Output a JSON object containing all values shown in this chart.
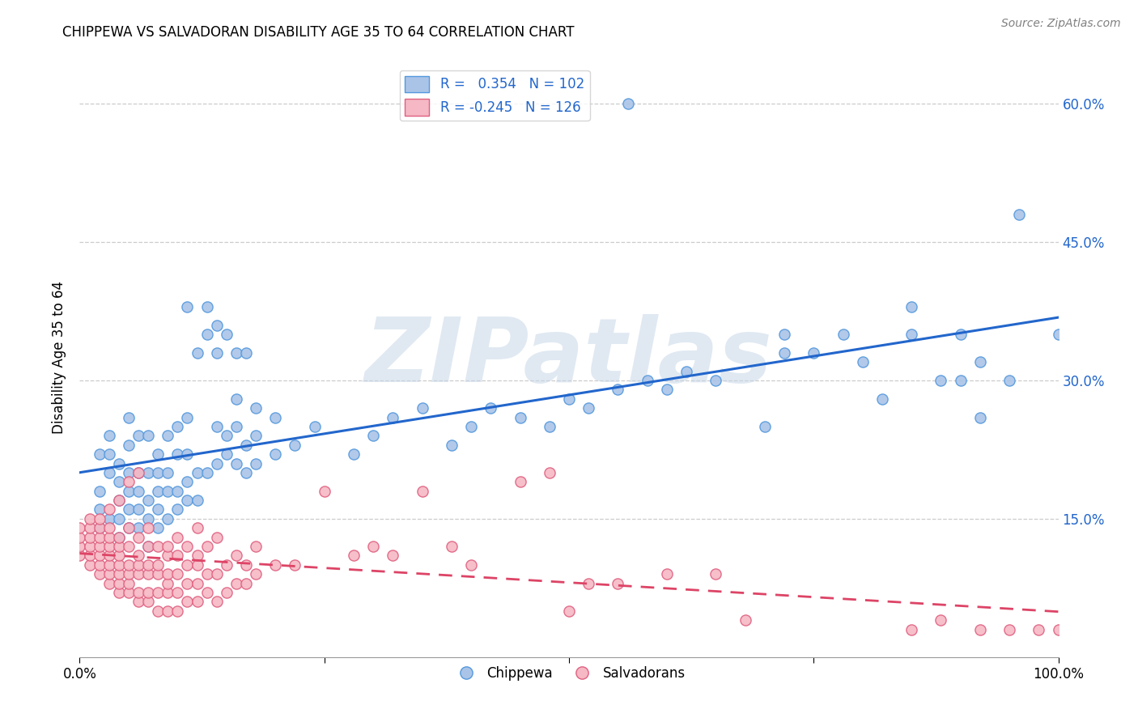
{
  "title": "CHIPPEWA VS SALVADORAN DISABILITY AGE 35 TO 64 CORRELATION CHART",
  "source": "Source: ZipAtlas.com",
  "ylabel": "Disability Age 35 to 64",
  "xlabel": "",
  "background_color": "#ffffff",
  "grid_color": "#cccccc",
  "chippewa_color": "#aac4e8",
  "chippewa_edge_color": "#5599dd",
  "salvadoran_color": "#f5b8c4",
  "salvadoran_edge_color": "#e06080",
  "chippewa_line_color": "#2266cc",
  "salvadoran_line_color": "#dd4466",
  "R_chippewa": 0.354,
  "N_chippewa": 102,
  "R_salvadoran": -0.245,
  "N_salvadoran": 126,
  "xmin": 0.0,
  "xmax": 1.0,
  "ymin": 0.0,
  "ymax": 0.65,
  "ytick_vals": [
    0.15,
    0.3,
    0.45,
    0.6
  ],
  "ytick_labels": [
    "15.0%",
    "30.0%",
    "45.0%",
    "60.0%"
  ],
  "xtick_vals": [
    0.0,
    0.25,
    0.5,
    0.75,
    1.0
  ],
  "xtick_labels": [
    "0.0%",
    "",
    "",
    "",
    "100.0%"
  ],
  "watermark": "ZIPatlas",
  "chippewa_scatter": [
    [
      0.02,
      0.14
    ],
    [
      0.02,
      0.16
    ],
    [
      0.02,
      0.18
    ],
    [
      0.02,
      0.22
    ],
    [
      0.03,
      0.15
    ],
    [
      0.03,
      0.2
    ],
    [
      0.03,
      0.22
    ],
    [
      0.03,
      0.24
    ],
    [
      0.04,
      0.13
    ],
    [
      0.04,
      0.15
    ],
    [
      0.04,
      0.17
    ],
    [
      0.04,
      0.19
    ],
    [
      0.04,
      0.21
    ],
    [
      0.05,
      0.14
    ],
    [
      0.05,
      0.16
    ],
    [
      0.05,
      0.18
    ],
    [
      0.05,
      0.2
    ],
    [
      0.05,
      0.23
    ],
    [
      0.05,
      0.26
    ],
    [
      0.06,
      0.14
    ],
    [
      0.06,
      0.16
    ],
    [
      0.06,
      0.18
    ],
    [
      0.06,
      0.2
    ],
    [
      0.06,
      0.24
    ],
    [
      0.07,
      0.12
    ],
    [
      0.07,
      0.15
    ],
    [
      0.07,
      0.17
    ],
    [
      0.07,
      0.2
    ],
    [
      0.07,
      0.24
    ],
    [
      0.08,
      0.14
    ],
    [
      0.08,
      0.16
    ],
    [
      0.08,
      0.18
    ],
    [
      0.08,
      0.2
    ],
    [
      0.08,
      0.22
    ],
    [
      0.09,
      0.15
    ],
    [
      0.09,
      0.18
    ],
    [
      0.09,
      0.2
    ],
    [
      0.09,
      0.24
    ],
    [
      0.1,
      0.16
    ],
    [
      0.1,
      0.18
    ],
    [
      0.1,
      0.22
    ],
    [
      0.1,
      0.25
    ],
    [
      0.11,
      0.17
    ],
    [
      0.11,
      0.19
    ],
    [
      0.11,
      0.22
    ],
    [
      0.11,
      0.26
    ],
    [
      0.11,
      0.38
    ],
    [
      0.12,
      0.17
    ],
    [
      0.12,
      0.2
    ],
    [
      0.12,
      0.33
    ],
    [
      0.13,
      0.2
    ],
    [
      0.13,
      0.35
    ],
    [
      0.13,
      0.38
    ],
    [
      0.14,
      0.21
    ],
    [
      0.14,
      0.25
    ],
    [
      0.14,
      0.33
    ],
    [
      0.14,
      0.36
    ],
    [
      0.15,
      0.22
    ],
    [
      0.15,
      0.24
    ],
    [
      0.15,
      0.35
    ],
    [
      0.16,
      0.21
    ],
    [
      0.16,
      0.25
    ],
    [
      0.16,
      0.28
    ],
    [
      0.16,
      0.33
    ],
    [
      0.17,
      0.2
    ],
    [
      0.17,
      0.23
    ],
    [
      0.17,
      0.33
    ],
    [
      0.18,
      0.21
    ],
    [
      0.18,
      0.24
    ],
    [
      0.18,
      0.27
    ],
    [
      0.2,
      0.22
    ],
    [
      0.2,
      0.26
    ],
    [
      0.22,
      0.23
    ],
    [
      0.24,
      0.25
    ],
    [
      0.28,
      0.22
    ],
    [
      0.3,
      0.24
    ],
    [
      0.32,
      0.26
    ],
    [
      0.35,
      0.27
    ],
    [
      0.38,
      0.23
    ],
    [
      0.4,
      0.25
    ],
    [
      0.42,
      0.27
    ],
    [
      0.45,
      0.26
    ],
    [
      0.48,
      0.25
    ],
    [
      0.5,
      0.28
    ],
    [
      0.52,
      0.27
    ],
    [
      0.55,
      0.29
    ],
    [
      0.56,
      0.6
    ],
    [
      0.58,
      0.3
    ],
    [
      0.6,
      0.29
    ],
    [
      0.62,
      0.31
    ],
    [
      0.65,
      0.3
    ],
    [
      0.7,
      0.25
    ],
    [
      0.72,
      0.33
    ],
    [
      0.72,
      0.35
    ],
    [
      0.75,
      0.33
    ],
    [
      0.78,
      0.35
    ],
    [
      0.8,
      0.32
    ],
    [
      0.82,
      0.28
    ],
    [
      0.85,
      0.35
    ],
    [
      0.85,
      0.38
    ],
    [
      0.88,
      0.3
    ],
    [
      0.9,
      0.3
    ],
    [
      0.9,
      0.35
    ],
    [
      0.92,
      0.26
    ],
    [
      0.92,
      0.32
    ],
    [
      0.95,
      0.3
    ],
    [
      0.96,
      0.48
    ],
    [
      1.0,
      0.35
    ]
  ],
  "salvadoran_scatter": [
    [
      0.0,
      0.11
    ],
    [
      0.0,
      0.12
    ],
    [
      0.0,
      0.13
    ],
    [
      0.0,
      0.14
    ],
    [
      0.01,
      0.1
    ],
    [
      0.01,
      0.11
    ],
    [
      0.01,
      0.12
    ],
    [
      0.01,
      0.13
    ],
    [
      0.01,
      0.14
    ],
    [
      0.01,
      0.15
    ],
    [
      0.02,
      0.09
    ],
    [
      0.02,
      0.1
    ],
    [
      0.02,
      0.11
    ],
    [
      0.02,
      0.12
    ],
    [
      0.02,
      0.13
    ],
    [
      0.02,
      0.14
    ],
    [
      0.02,
      0.15
    ],
    [
      0.03,
      0.08
    ],
    [
      0.03,
      0.09
    ],
    [
      0.03,
      0.1
    ],
    [
      0.03,
      0.11
    ],
    [
      0.03,
      0.12
    ],
    [
      0.03,
      0.13
    ],
    [
      0.03,
      0.14
    ],
    [
      0.03,
      0.16
    ],
    [
      0.04,
      0.07
    ],
    [
      0.04,
      0.08
    ],
    [
      0.04,
      0.09
    ],
    [
      0.04,
      0.1
    ],
    [
      0.04,
      0.11
    ],
    [
      0.04,
      0.12
    ],
    [
      0.04,
      0.13
    ],
    [
      0.04,
      0.17
    ],
    [
      0.05,
      0.07
    ],
    [
      0.05,
      0.08
    ],
    [
      0.05,
      0.09
    ],
    [
      0.05,
      0.1
    ],
    [
      0.05,
      0.12
    ],
    [
      0.05,
      0.14
    ],
    [
      0.05,
      0.19
    ],
    [
      0.06,
      0.06
    ],
    [
      0.06,
      0.07
    ],
    [
      0.06,
      0.09
    ],
    [
      0.06,
      0.1
    ],
    [
      0.06,
      0.11
    ],
    [
      0.06,
      0.13
    ],
    [
      0.06,
      0.2
    ],
    [
      0.07,
      0.06
    ],
    [
      0.07,
      0.07
    ],
    [
      0.07,
      0.09
    ],
    [
      0.07,
      0.1
    ],
    [
      0.07,
      0.12
    ],
    [
      0.07,
      0.14
    ],
    [
      0.08,
      0.05
    ],
    [
      0.08,
      0.07
    ],
    [
      0.08,
      0.09
    ],
    [
      0.08,
      0.1
    ],
    [
      0.08,
      0.12
    ],
    [
      0.09,
      0.05
    ],
    [
      0.09,
      0.07
    ],
    [
      0.09,
      0.08
    ],
    [
      0.09,
      0.09
    ],
    [
      0.09,
      0.11
    ],
    [
      0.09,
      0.12
    ],
    [
      0.1,
      0.05
    ],
    [
      0.1,
      0.07
    ],
    [
      0.1,
      0.09
    ],
    [
      0.1,
      0.11
    ],
    [
      0.1,
      0.13
    ],
    [
      0.11,
      0.06
    ],
    [
      0.11,
      0.08
    ],
    [
      0.11,
      0.1
    ],
    [
      0.11,
      0.12
    ],
    [
      0.12,
      0.06
    ],
    [
      0.12,
      0.08
    ],
    [
      0.12,
      0.1
    ],
    [
      0.12,
      0.11
    ],
    [
      0.12,
      0.14
    ],
    [
      0.13,
      0.07
    ],
    [
      0.13,
      0.09
    ],
    [
      0.13,
      0.12
    ],
    [
      0.14,
      0.06
    ],
    [
      0.14,
      0.09
    ],
    [
      0.14,
      0.13
    ],
    [
      0.15,
      0.07
    ],
    [
      0.15,
      0.1
    ],
    [
      0.16,
      0.08
    ],
    [
      0.16,
      0.11
    ],
    [
      0.17,
      0.08
    ],
    [
      0.17,
      0.1
    ],
    [
      0.18,
      0.09
    ],
    [
      0.18,
      0.12
    ],
    [
      0.2,
      0.1
    ],
    [
      0.22,
      0.1
    ],
    [
      0.25,
      0.18
    ],
    [
      0.28,
      0.11
    ],
    [
      0.3,
      0.12
    ],
    [
      0.32,
      0.11
    ],
    [
      0.35,
      0.18
    ],
    [
      0.38,
      0.12
    ],
    [
      0.4,
      0.1
    ],
    [
      0.45,
      0.19
    ],
    [
      0.48,
      0.2
    ],
    [
      0.5,
      0.05
    ],
    [
      0.52,
      0.08
    ],
    [
      0.55,
      0.08
    ],
    [
      0.6,
      0.09
    ],
    [
      0.65,
      0.09
    ],
    [
      0.68,
      0.04
    ],
    [
      0.85,
      0.03
    ],
    [
      0.88,
      0.04
    ],
    [
      0.92,
      0.03
    ],
    [
      0.95,
      0.03
    ],
    [
      0.98,
      0.03
    ],
    [
      1.0,
      0.03
    ]
  ]
}
